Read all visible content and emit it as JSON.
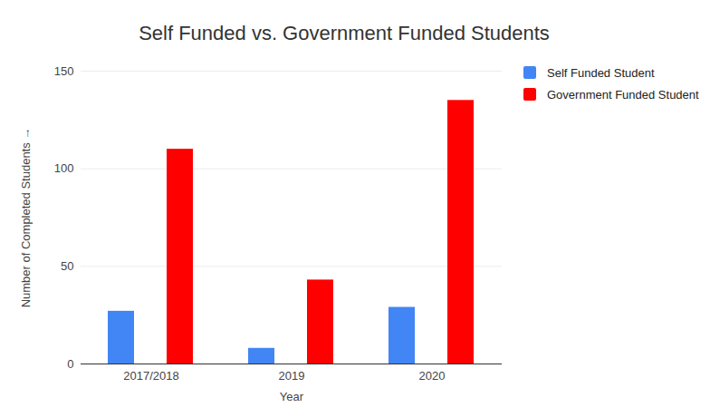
{
  "chart_data": {
    "type": "bar",
    "title": "Self Funded vs. Government Funded Students",
    "x_label": "Year",
    "y_label": "Number of Completed Students",
    "categories": [
      "2017/2018",
      "2019",
      "2020"
    ],
    "series": [
      {
        "name": "Self Funded Student",
        "color": "#4285f4",
        "values": [
          27,
          8,
          29
        ]
      },
      {
        "name": "Government Funded Student",
        "color": "#ff0000",
        "values": [
          110,
          43,
          135
        ]
      }
    ],
    "ylim": [
      0,
      150
    ],
    "yticks": [
      0,
      50,
      100,
      150
    ],
    "grid": true,
    "legend": "right"
  }
}
